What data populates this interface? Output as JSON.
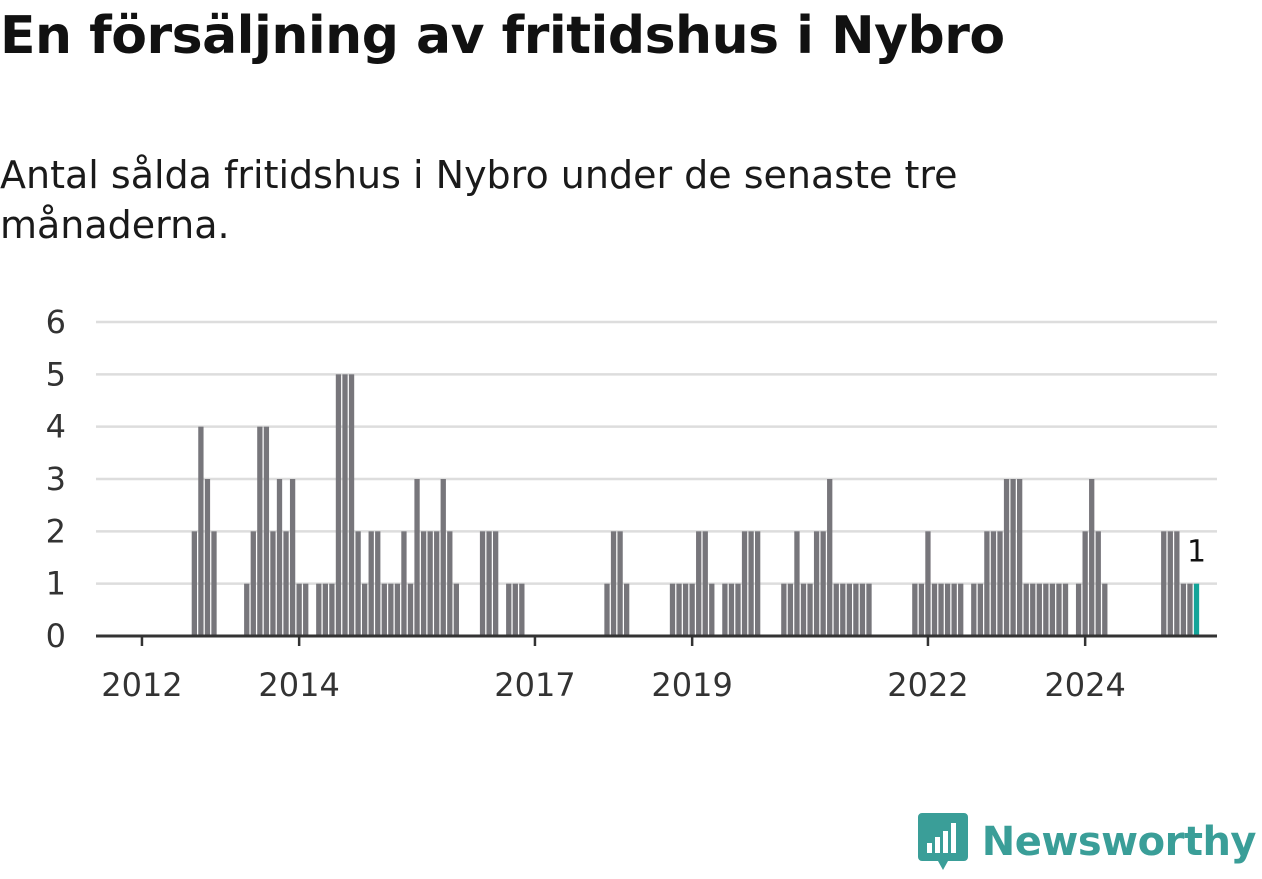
{
  "title": "En försäljning av fritidshus i Nybro",
  "subtitle": "Antal sålda fritidshus i Nybro under de senaste tre månaderna.",
  "brand": {
    "name": "Newsworthy",
    "color": "#3a9e98",
    "icon": "newsworthy-logo-icon"
  },
  "colors": {
    "bar": "#77767b",
    "highlight": "#13a499",
    "grid": "#dddddd",
    "axis": "#333333"
  },
  "chart_data": {
    "type": "bar",
    "x_unit": "month",
    "start": "2011-07",
    "ylim": [
      0,
      6
    ],
    "yticks": [
      0,
      1,
      2,
      3,
      4,
      5,
      6
    ],
    "xticks": [
      {
        "label": "2012",
        "month": "2012-01"
      },
      {
        "label": "2014",
        "month": "2014-01"
      },
      {
        "label": "2017",
        "month": "2017-01"
      },
      {
        "label": "2019",
        "month": "2019-01"
      },
      {
        "label": "2022",
        "month": "2022-01"
      },
      {
        "label": "2024",
        "month": "2024-01"
      }
    ],
    "grid": true,
    "values": [
      0,
      0,
      0,
      0,
      0,
      0,
      0,
      0,
      0,
      0,
      0,
      0,
      0,
      0,
      2,
      4,
      3,
      2,
      0,
      0,
      0,
      0,
      1,
      2,
      4,
      4,
      2,
      3,
      2,
      3,
      1,
      1,
      0,
      1,
      1,
      1,
      5,
      5,
      5,
      2,
      1,
      2,
      2,
      1,
      1,
      1,
      2,
      1,
      3,
      2,
      2,
      2,
      3,
      2,
      1,
      0,
      0,
      0,
      2,
      2,
      2,
      0,
      1,
      1,
      1,
      0,
      0,
      0,
      0,
      0,
      0,
      0,
      0,
      0,
      0,
      0,
      0,
      1,
      2,
      2,
      1,
      0,
      0,
      0,
      0,
      0,
      0,
      1,
      1,
      1,
      1,
      2,
      2,
      1,
      0,
      1,
      1,
      1,
      2,
      2,
      2,
      0,
      0,
      0,
      1,
      1,
      2,
      1,
      1,
      2,
      2,
      3,
      1,
      1,
      1,
      1,
      1,
      1,
      0,
      0,
      0,
      0,
      0,
      0,
      1,
      1,
      2,
      1,
      1,
      1,
      1,
      1,
      0,
      1,
      1,
      2,
      2,
      2,
      3,
      3,
      3,
      1,
      1,
      1,
      1,
      1,
      1,
      1,
      0,
      1,
      2,
      3,
      2,
      1,
      0,
      0,
      0,
      0,
      0,
      0,
      0,
      0,
      2,
      2,
      2,
      1,
      1,
      1
    ],
    "highlight_last": true,
    "last_value_label": "1"
  }
}
